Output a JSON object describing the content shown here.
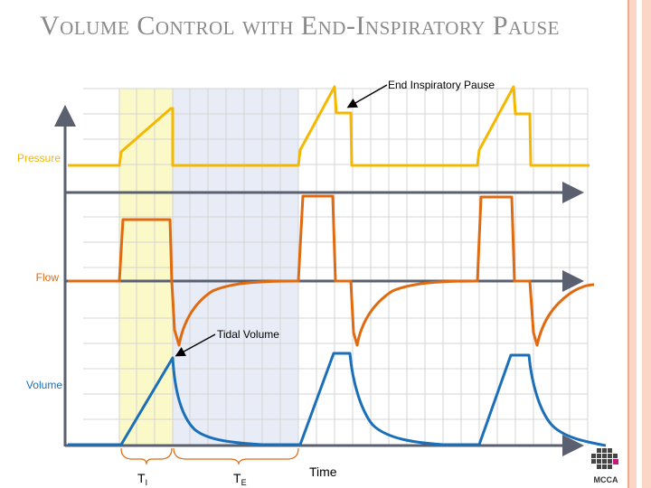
{
  "title": "Volume Control with End-Inspiratory Pause",
  "labels": {
    "pressure": "Pressure",
    "flow": "Flow",
    "volume": "Volume",
    "time": "Time",
    "end_inspiratory_pause": "End Inspiratory Pause",
    "tidal_volume": "Tidal Volume",
    "ti_main": "T",
    "ti_sub": "I",
    "te_main": "T",
    "te_sub": "E"
  },
  "logo_text": "MCCA",
  "colors": {
    "pressure": "#f5b800",
    "flow": "#e06a10",
    "volume": "#1a6fb8",
    "axis": "#5a6070",
    "inspiration_band": "#fbf9c8",
    "expiration_band": "#e8ecf6",
    "title": "#8a8a8a",
    "border": "#fbd5c6"
  },
  "icons": [
    "arrow-icon",
    "mcca-logo-icon"
  ]
}
